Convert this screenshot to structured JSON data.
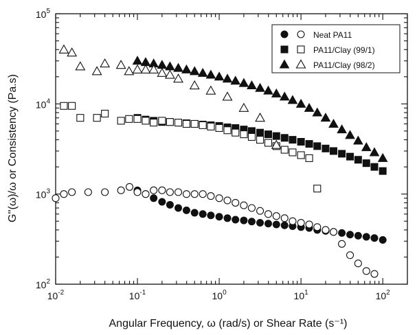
{
  "chart_data": {
    "type": "scatter",
    "x_scale": "log",
    "y_scale": "log",
    "xlim": [
      0.01,
      200
    ],
    "ylim": [
      100,
      100000
    ],
    "xlabel": "Angular Frequency, ω (rad/s) or Shear Rate (s⁻¹)",
    "ylabel": "G''(ω)/ω or Consistency (Pa.s)",
    "x_tick_labels": [
      {
        "value": 0.01,
        "base": "10",
        "exp": "-2"
      },
      {
        "value": 0.1,
        "base": "10",
        "exp": "-1"
      },
      {
        "value": 1,
        "base": "10",
        "exp": "0"
      },
      {
        "value": 10,
        "base": "10",
        "exp": "1"
      },
      {
        "value": 100,
        "base": "10",
        "exp": "2"
      }
    ],
    "y_tick_labels": [
      {
        "value": 100,
        "base": "10",
        "exp": "2"
      },
      {
        "value": 1000,
        "base": "10",
        "exp": "3"
      },
      {
        "value": 10000,
        "base": "10",
        "exp": "4"
      },
      {
        "value": 100000,
        "base": "10",
        "exp": "5"
      }
    ],
    "legend": {
      "placement": "top-right",
      "entries": [
        {
          "label": "Neat PA11",
          "shape": "circle"
        },
        {
          "label": "PA11/Clay (99/1)",
          "shape": "square"
        },
        {
          "label": "PA11/Clay (98/2)",
          "shape": "triangle"
        }
      ]
    },
    "series": [
      {
        "shape": "circle",
        "filled": true,
        "points": [
          [
            0.1,
            1100
          ],
          [
            0.126,
            1000
          ],
          [
            0.158,
            900
          ],
          [
            0.2,
            820
          ],
          [
            0.25,
            760
          ],
          [
            0.316,
            700
          ],
          [
            0.398,
            660
          ],
          [
            0.5,
            620
          ],
          [
            0.63,
            600
          ],
          [
            0.79,
            580
          ],
          [
            1,
            560
          ],
          [
            1.26,
            540
          ],
          [
            1.58,
            520
          ],
          [
            2,
            510
          ],
          [
            2.5,
            495
          ],
          [
            3.16,
            480
          ],
          [
            3.98,
            470
          ],
          [
            5,
            460
          ],
          [
            6.3,
            450
          ],
          [
            7.9,
            440
          ],
          [
            10,
            430
          ],
          [
            12.6,
            420
          ],
          [
            15.8,
            400
          ],
          [
            20,
            390
          ],
          [
            25,
            380
          ],
          [
            31.6,
            370
          ],
          [
            39.8,
            355
          ],
          [
            50,
            345
          ],
          [
            63,
            335
          ],
          [
            79,
            325
          ],
          [
            100,
            310
          ]
        ]
      },
      {
        "shape": "circle",
        "filled": false,
        "points": [
          [
            0.01,
            900
          ],
          [
            0.0126,
            1000
          ],
          [
            0.0158,
            1050
          ],
          [
            0.025,
            1050
          ],
          [
            0.04,
            1050
          ],
          [
            0.063,
            1100
          ],
          [
            0.08,
            1200
          ],
          [
            0.1,
            1050
          ],
          [
            0.126,
            1000
          ],
          [
            0.158,
            1100
          ],
          [
            0.2,
            1100
          ],
          [
            0.25,
            1050
          ],
          [
            0.316,
            1050
          ],
          [
            0.398,
            1000
          ],
          [
            0.5,
            1000
          ],
          [
            0.63,
            1000
          ],
          [
            0.79,
            950
          ],
          [
            1,
            900
          ],
          [
            1.26,
            850
          ],
          [
            1.58,
            800
          ],
          [
            2,
            750
          ],
          [
            2.5,
            700
          ],
          [
            3.16,
            650
          ],
          [
            3.98,
            600
          ],
          [
            5,
            570
          ],
          [
            6.3,
            540
          ],
          [
            7.9,
            500
          ],
          [
            10,
            480
          ],
          [
            12.6,
            460
          ],
          [
            15.8,
            430
          ],
          [
            20,
            400
          ],
          [
            25,
            380
          ],
          [
            31.6,
            280
          ],
          [
            39.8,
            210
          ],
          [
            50,
            170
          ],
          [
            63,
            140
          ],
          [
            79,
            130
          ]
        ]
      },
      {
        "shape": "square",
        "filled": true,
        "points": [
          [
            0.1,
            7000
          ],
          [
            0.126,
            6700
          ],
          [
            0.158,
            6500
          ],
          [
            0.2,
            6300
          ],
          [
            0.25,
            6300
          ],
          [
            0.316,
            6200
          ],
          [
            0.398,
            6100
          ],
          [
            0.5,
            6000
          ],
          [
            0.63,
            5900
          ],
          [
            0.79,
            5800
          ],
          [
            1,
            5700
          ],
          [
            1.26,
            5500
          ],
          [
            1.58,
            5400
          ],
          [
            2,
            5200
          ],
          [
            2.5,
            5000
          ],
          [
            3.16,
            4800
          ],
          [
            3.98,
            4600
          ],
          [
            5,
            4400
          ],
          [
            6.3,
            4200
          ],
          [
            7.9,
            4000
          ],
          [
            10,
            3800
          ],
          [
            12.6,
            3600
          ],
          [
            15.8,
            3400
          ],
          [
            20,
            3200
          ],
          [
            25,
            3000
          ],
          [
            31.6,
            2800
          ],
          [
            39.8,
            2600
          ],
          [
            50,
            2400
          ],
          [
            63,
            2200
          ],
          [
            79,
            2000
          ],
          [
            100,
            1800
          ]
        ]
      },
      {
        "shape": "square",
        "filled": false,
        "points": [
          [
            0.0126,
            9500
          ],
          [
            0.0158,
            9500
          ],
          [
            0.02,
            7000
          ],
          [
            0.032,
            7000
          ],
          [
            0.04,
            7800
          ],
          [
            0.063,
            6500
          ],
          [
            0.079,
            6800
          ],
          [
            0.1,
            6800
          ],
          [
            0.126,
            6500
          ],
          [
            0.158,
            6200
          ],
          [
            0.2,
            6500
          ],
          [
            0.25,
            6300
          ],
          [
            0.316,
            6200
          ],
          [
            0.398,
            6000
          ],
          [
            0.5,
            6000
          ],
          [
            0.63,
            5800
          ],
          [
            0.79,
            5600
          ],
          [
            1,
            5400
          ],
          [
            1.26,
            5100
          ],
          [
            1.58,
            4800
          ],
          [
            2,
            4600
          ],
          [
            2.5,
            4300
          ],
          [
            3.16,
            4000
          ],
          [
            3.98,
            3700
          ],
          [
            5,
            3400
          ],
          [
            6.3,
            3100
          ],
          [
            7.9,
            2900
          ],
          [
            10,
            2700
          ],
          [
            12.6,
            2500
          ],
          [
            15.8,
            1150
          ]
        ]
      },
      {
        "shape": "triangle",
        "filled": true,
        "points": [
          [
            0.1,
            30000
          ],
          [
            0.126,
            29000
          ],
          [
            0.158,
            28000
          ],
          [
            0.2,
            27000
          ],
          [
            0.25,
            26000
          ],
          [
            0.316,
            25000
          ],
          [
            0.398,
            24000
          ],
          [
            0.5,
            23000
          ],
          [
            0.63,
            22000
          ],
          [
            0.79,
            21000
          ],
          [
            1,
            20000
          ],
          [
            1.26,
            19000
          ],
          [
            1.58,
            18000
          ],
          [
            2,
            17000
          ],
          [
            2.5,
            16000
          ],
          [
            3.16,
            15000
          ],
          [
            3.98,
            14000
          ],
          [
            5,
            13000
          ],
          [
            6.3,
            12000
          ],
          [
            7.9,
            11000
          ],
          [
            10,
            10000
          ],
          [
            12.6,
            9000
          ],
          [
            15.8,
            8000
          ],
          [
            20,
            7000
          ],
          [
            25,
            6000
          ],
          [
            31.6,
            5200
          ],
          [
            39.8,
            4500
          ],
          [
            50,
            3900
          ],
          [
            63,
            3300
          ],
          [
            79,
            2900
          ],
          [
            100,
            2500
          ]
        ]
      },
      {
        "shape": "triangle",
        "filled": false,
        "points": [
          [
            0.0126,
            40000
          ],
          [
            0.0158,
            37000
          ],
          [
            0.02,
            26000
          ],
          [
            0.032,
            23000
          ],
          [
            0.04,
            28000
          ],
          [
            0.063,
            27000
          ],
          [
            0.079,
            23000
          ],
          [
            0.1,
            24000
          ],
          [
            0.126,
            24000
          ],
          [
            0.158,
            24000
          ],
          [
            0.2,
            22000
          ],
          [
            0.25,
            21000
          ],
          [
            0.316,
            19000
          ],
          [
            0.5,
            16000
          ],
          [
            0.79,
            14000
          ],
          [
            1.26,
            12000
          ],
          [
            2,
            9000
          ],
          [
            3.16,
            7000
          ],
          [
            5,
            3500
          ]
        ]
      }
    ]
  }
}
